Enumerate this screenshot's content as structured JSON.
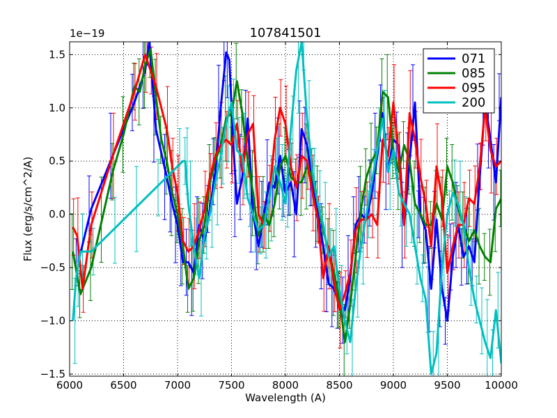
{
  "chart_data": {
    "type": "line",
    "title": "107841501",
    "xlabel": "Wavelength (A)",
    "ylabel": "Flux (erg/s/cm^2/A)",
    "offset_text": "1e−19",
    "scale_exponent": -19,
    "xlim": [
      6000,
      10000
    ],
    "ylim": [
      -1.52,
      1.62
    ],
    "xticks": [
      6000,
      6500,
      7000,
      7500,
      8000,
      8500,
      9000,
      9500,
      10000
    ],
    "xtick_labels": [
      "6000",
      "6500",
      "7000",
      "7500",
      "8000",
      "8500",
      "9000",
      "9500",
      "10000"
    ],
    "yticks": [
      -1.5,
      -1.0,
      -0.5,
      0.0,
      0.5,
      1.0,
      1.5
    ],
    "ytick_labels": [
      "−1.5",
      "−1.0",
      "−0.5",
      "0.0",
      "0.5",
      "1.0",
      "1.5"
    ],
    "grid": true,
    "legend_position": "top-right",
    "series": [
      {
        "name": "071",
        "color": "#0000ff",
        "x": [
          6080,
          6200,
          6400,
          6600,
          6700,
          6740,
          6800,
          6900,
          6950,
          7000,
          7050,
          7100,
          7150,
          7200,
          7250,
          7300,
          7350,
          7400,
          7450,
          7480,
          7520,
          7550,
          7600,
          7650,
          7700,
          7750,
          7800,
          7850,
          7900,
          7950,
          8000,
          8050,
          8100,
          8150,
          8200,
          8250,
          8300,
          8350,
          8400,
          8450,
          8500,
          8550,
          8600,
          8650,
          8700,
          8750,
          8800,
          8850,
          8900,
          8950,
          9000,
          9050,
          9100,
          9150,
          9200,
          9250,
          9300,
          9350,
          9400,
          9450,
          9500,
          9550,
          9600,
          9650,
          9700,
          9750,
          9800,
          9850,
          9900,
          9950,
          10000
        ],
        "y": [
          -0.45,
          0.05,
          0.55,
          1.05,
          1.35,
          1.62,
          0.8,
          0.35,
          0.1,
          -0.1,
          -0.45,
          -0.45,
          -0.55,
          -0.1,
          -0.25,
          0.05,
          0.4,
          1.0,
          1.52,
          1.45,
          0.6,
          0.1,
          0.35,
          0.9,
          0.0,
          -0.3,
          0.0,
          0.3,
          0.25,
          0.55,
          0.2,
          0.3,
          0.0,
          0.8,
          0.65,
          0.3,
          0.0,
          -0.3,
          -0.65,
          -0.7,
          -0.85,
          -0.9,
          -0.6,
          -0.1,
          0.0,
          -0.05,
          0.2,
          0.55,
          0.95,
          0.4,
          0.7,
          0.65,
          -0.1,
          0.5,
          1.05,
          0.0,
          -0.15,
          -0.7,
          -0.05,
          -0.7,
          -1.0,
          -0.4,
          -0.1,
          -0.4,
          -0.3,
          -0.45,
          0.35,
          1.05,
          0.7,
          0.3,
          1.1
        ]
      },
      {
        "name": "085",
        "color": "#008000",
        "x": [
          6030,
          6100,
          6200,
          6300,
          6400,
          6500,
          6600,
          6650,
          6700,
          6750,
          6800,
          6850,
          6900,
          6950,
          7000,
          7050,
          7100,
          7150,
          7200,
          7250,
          7300,
          7350,
          7400,
          7450,
          7500,
          7550,
          7600,
          7650,
          7700,
          7750,
          7800,
          7850,
          7900,
          7950,
          8000,
          8050,
          8100,
          8150,
          8200,
          8250,
          8300,
          8350,
          8400,
          8450,
          8500,
          8550,
          8600,
          8650,
          8700,
          8750,
          8800,
          8850,
          8900,
          8950,
          9000,
          9050,
          9100,
          9150,
          9200,
          9250,
          9300,
          9350,
          9400,
          9450,
          9500,
          9550,
          9600,
          9650,
          9700,
          9750,
          9800,
          9850,
          9900,
          9950,
          10000
        ],
        "y": [
          -0.35,
          -0.75,
          -0.5,
          -0.05,
          0.4,
          0.75,
          1.2,
          1.15,
          1.4,
          1.55,
          1.1,
          0.7,
          0.5,
          0.2,
          0.0,
          -0.3,
          -0.7,
          -0.6,
          -0.25,
          -0.1,
          0.3,
          0.5,
          0.65,
          0.9,
          0.95,
          1.25,
          0.95,
          0.5,
          0.2,
          -0.2,
          0.0,
          -0.1,
          0.1,
          0.45,
          0.55,
          0.35,
          0.3,
          0.3,
          0.45,
          0.35,
          0.1,
          -0.15,
          -0.35,
          -0.55,
          -0.8,
          -1.2,
          -0.85,
          -0.4,
          0.05,
          0.35,
          0.5,
          0.6,
          1.15,
          1.1,
          0.6,
          0.4,
          0.65,
          0.5,
          0.1,
          0.0,
          -0.1,
          -0.1,
          0.1,
          -0.05,
          0.45,
          0.3,
          0.05,
          -0.1,
          -0.25,
          -0.15,
          -0.3,
          -0.4,
          -0.45,
          0.05,
          0.15
        ]
      },
      {
        "name": "095",
        "color": "#ff0000",
        "x": [
          6030,
          6070,
          6120,
          6200,
          6400,
          6600,
          6700,
          6750,
          6800,
          6900,
          6950,
          7000,
          7050,
          7100,
          7150,
          7200,
          7250,
          7300,
          7350,
          7400,
          7450,
          7500,
          7550,
          7600,
          7650,
          7700,
          7750,
          7800,
          7850,
          7900,
          7950,
          8000,
          8050,
          8100,
          8150,
          8200,
          8250,
          8300,
          8350,
          8400,
          8450,
          8500,
          8550,
          8600,
          8650,
          8700,
          8750,
          8800,
          8850,
          8900,
          8950,
          9000,
          9050,
          9100,
          9150,
          9200,
          9250,
          9300,
          9350,
          9400,
          9450,
          9500,
          9550,
          9600,
          9650,
          9700,
          9750,
          9800,
          9850,
          9900,
          9950,
          10000
        ],
        "y": [
          -0.12,
          -0.2,
          -0.7,
          -0.1,
          0.55,
          1.15,
          1.5,
          1.35,
          1.2,
          0.8,
          0.45,
          0.2,
          -0.25,
          -0.35,
          -0.3,
          -0.15,
          0.05,
          0.35,
          0.55,
          0.65,
          0.7,
          0.65,
          0.85,
          0.4,
          0.75,
          0.85,
          0.0,
          -0.1,
          0.15,
          0.7,
          1.0,
          0.85,
          0.45,
          0.25,
          0.55,
          0.5,
          0.2,
          -0.05,
          -0.6,
          -0.3,
          -0.65,
          -0.9,
          -0.75,
          -0.55,
          -0.15,
          -0.05,
          -0.05,
          0.0,
          -0.1,
          0.7,
          0.55,
          1.05,
          0.55,
          -0.1,
          0.95,
          0.7,
          0.35,
          0.1,
          -0.3,
          0.45,
          0.15,
          -0.55,
          -0.3,
          -0.1,
          -0.1,
          0.15,
          0.1,
          0.45,
          1.0,
          0.6,
          0.45,
          0.5
        ]
      },
      {
        "name": "200",
        "color": "#00bfbf",
        "x": [
          6030,
          6060,
          6100,
          6200,
          6400,
          6600,
          6800,
          7000,
          7050,
          7070,
          7100,
          7150,
          7200,
          7250,
          7300,
          7350,
          7400,
          7450,
          7500,
          7550,
          7600,
          7650,
          7700,
          7750,
          7800,
          7850,
          7900,
          7950,
          8000,
          8050,
          8100,
          8150,
          8200,
          8250,
          8300,
          8350,
          8400,
          8450,
          8500,
          8550,
          8600,
          8650,
          8700,
          8750,
          8800,
          8850,
          8900,
          8950,
          9000,
          9050,
          9100,
          9150,
          9200,
          9250,
          9300,
          9350,
          9400,
          9450,
          9500,
          9550,
          9600,
          9650,
          9700,
          9750,
          9800,
          9850,
          9900,
          9950,
          10000
        ],
        "y": [
          -1.0,
          -0.6,
          -0.35,
          -0.35,
          -0.15,
          0.05,
          0.25,
          0.45,
          0.5,
          0.5,
          0.1,
          -0.3,
          -0.6,
          -0.2,
          0.0,
          0.3,
          0.55,
          0.85,
          1.05,
          0.6,
          0.55,
          0.15,
          0.0,
          -0.15,
          -0.1,
          0.15,
          0.45,
          0.3,
          0.1,
          0.8,
          1.35,
          1.62,
          0.9,
          0.4,
          0.1,
          -0.1,
          -0.4,
          -0.3,
          -0.7,
          -1.0,
          -1.2,
          -0.7,
          -0.3,
          0.0,
          0.3,
          0.6,
          0.9,
          0.4,
          0.6,
          0.2,
          0.1,
          0.0,
          -0.3,
          -0.6,
          -0.8,
          -1.5,
          -1.3,
          -0.5,
          0.0,
          0.2,
          0.1,
          -0.1,
          -0.5,
          -0.8,
          -1.0,
          -1.2,
          -1.35,
          -0.9,
          -1.4
        ]
      }
    ]
  }
}
